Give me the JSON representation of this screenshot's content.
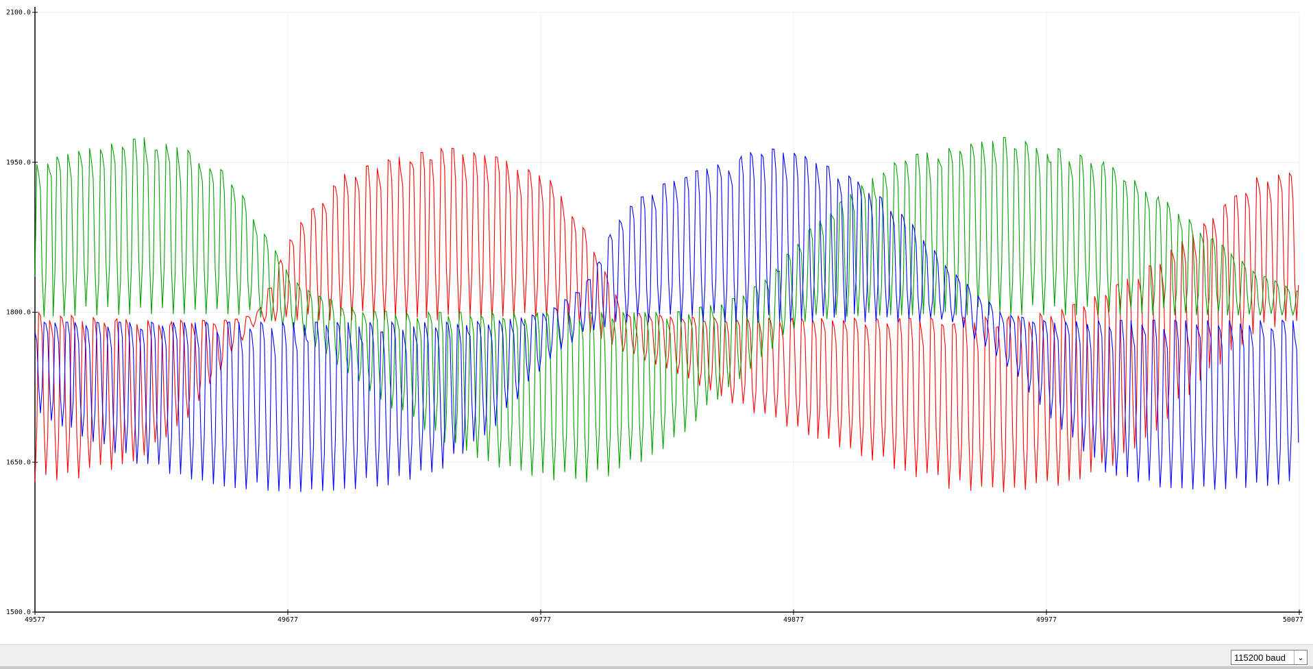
{
  "chart_data": {
    "type": "line",
    "title": "",
    "xlabel": "",
    "ylabel": "",
    "xlim": [
      49577,
      50077
    ],
    "ylim": [
      1500,
      2100
    ],
    "y_ticks": [
      "1500.0",
      "1650.0",
      "1800.0",
      "1950.0",
      "2100.0"
    ],
    "x_ticks": [
      "49577",
      "49677",
      "49777",
      "49877",
      "49977",
      "50077"
    ],
    "grid": true,
    "legend": "none",
    "period_samples": 4.3,
    "series": [
      {
        "color": "#ff0000",
        "env_x": [
          49577,
          49600,
          49620,
          49640,
          49655,
          49665,
          49680,
          49700,
          49720,
          49740,
          49760,
          49780,
          49795,
          49810,
          49830,
          49850,
          49865,
          49880,
          49900,
          49920,
          49940,
          49960,
          49980,
          50000,
          50020,
          50040,
          50060,
          50077
        ],
        "env_max": [
          1800,
          1795,
          1792,
          1792,
          1792,
          1800,
          1885,
          1940,
          1955,
          1965,
          1955,
          1935,
          1880,
          1800,
          1796,
          1794,
          1794,
          1794,
          1794,
          1794,
          1795,
          1795,
          1800,
          1820,
          1850,
          1890,
          1935,
          1940
        ],
        "env_min": [
          1630,
          1635,
          1655,
          1700,
          1760,
          1790,
          1792,
          1792,
          1792,
          1792,
          1792,
          1795,
          1782,
          1760,
          1740,
          1712,
          1695,
          1680,
          1660,
          1640,
          1622,
          1620,
          1625,
          1640,
          1680,
          1735,
          1780,
          1792
        ]
      },
      {
        "color": "#00a000",
        "env_x": [
          49577,
          49600,
          49620,
          49640,
          49655,
          49665,
          49680,
          49700,
          49720,
          49740,
          49760,
          49780,
          49795,
          49810,
          49830,
          49850,
          49865,
          49880,
          49900,
          49920,
          49940,
          49960,
          49980,
          50000,
          50020,
          50040,
          50060,
          50077
        ],
        "env_max": [
          1950,
          1965,
          1975,
          1960,
          1935,
          1890,
          1830,
          1805,
          1800,
          1800,
          1800,
          1800,
          1800,
          1800,
          1800,
          1810,
          1830,
          1875,
          1920,
          1955,
          1965,
          1975,
          1965,
          1950,
          1920,
          1880,
          1840,
          1820
        ],
        "env_min": [
          1795,
          1797,
          1798,
          1798,
          1798,
          1796,
          1782,
          1740,
          1700,
          1668,
          1645,
          1632,
          1630,
          1640,
          1670,
          1720,
          1755,
          1790,
          1796,
          1797,
          1797,
          1797,
          1797,
          1797,
          1797,
          1797,
          1797,
          1797
        ]
      },
      {
        "color": "#0000ff",
        "env_x": [
          49577,
          49600,
          49620,
          49640,
          49655,
          49665,
          49680,
          49700,
          49720,
          49740,
          49760,
          49780,
          49795,
          49810,
          49830,
          49850,
          49865,
          49880,
          49900,
          49920,
          49940,
          49960,
          49980,
          50000,
          50020,
          50040,
          50060,
          50077
        ],
        "env_max": [
          1790,
          1790,
          1790,
          1790,
          1790,
          1790,
          1790,
          1790,
          1790,
          1790,
          1791,
          1800,
          1830,
          1905,
          1935,
          1950,
          1965,
          1958,
          1935,
          1900,
          1840,
          1798,
          1790,
          1792,
          1792,
          1792,
          1792,
          1792
        ],
        "env_min": [
          1700,
          1670,
          1645,
          1632,
          1624,
          1622,
          1620,
          1622,
          1628,
          1645,
          1688,
          1752,
          1780,
          1790,
          1790,
          1790,
          1790,
          1790,
          1790,
          1790,
          1790,
          1750,
          1690,
          1640,
          1625,
          1622,
          1625,
          1630
        ]
      }
    ]
  },
  "footer": {
    "baud_rate": "115200 baud"
  }
}
